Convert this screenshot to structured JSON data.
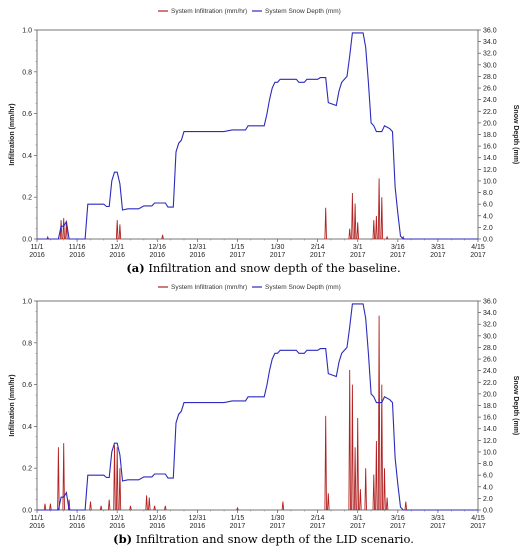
{
  "chart_data": [
    {
      "type": "line",
      "caption_tag": "(a)",
      "caption_text": " Infiltration and snow depth of the baseline.",
      "ylabel_left": "Infiltration (mm/hr)",
      "ylabel_right": "Snow Depth (mm)",
      "ylim_left": [
        0,
        1.0
      ],
      "ylim_right": [
        0,
        36
      ],
      "yticks_left": [
        "0.0",
        "0.2",
        "0.4",
        "0.6",
        "0.8",
        "1.0"
      ],
      "yticks_right": [
        "0.0",
        "2.0",
        "4.0",
        "6.0",
        "8.0",
        "10.0",
        "12.0",
        "14.0",
        "16.0",
        "18.0",
        "20.0",
        "22.0",
        "24.0",
        "26.0",
        "28.0",
        "30.0",
        "32.0",
        "34.0",
        "36.0"
      ],
      "x_ticks": [
        {
          "day": 0,
          "line1": "11/1",
          "line2": "2016"
        },
        {
          "day": 15,
          "line1": "11/16",
          "line2": "2016"
        },
        {
          "day": 30,
          "line1": "12/1",
          "line2": "2016"
        },
        {
          "day": 45,
          "line1": "12/16",
          "line2": "2016"
        },
        {
          "day": 60,
          "line1": "12/31",
          "line2": "2016"
        },
        {
          "day": 75,
          "line1": "1/15",
          "line2": "2017"
        },
        {
          "day": 90,
          "line1": "1/30",
          "line2": "2017"
        },
        {
          "day": 105,
          "line1": "2/14",
          "line2": "2017"
        },
        {
          "day": 120,
          "line1": "3/1",
          "line2": "2017"
        },
        {
          "day": 135,
          "line1": "3/16",
          "line2": "2017"
        },
        {
          "day": 150,
          "line1": "3/31",
          "line2": "2017"
        },
        {
          "day": 165,
          "line1": "4/15",
          "line2": "2017"
        }
      ],
      "xlim_days": [
        0,
        165
      ],
      "series": [
        {
          "name": "System Infiltration (mm/hr)",
          "color": "#b22222",
          "axis": "left",
          "kind": "spikes",
          "points": [
            [
              4,
              0.01
            ],
            [
              9,
              0.09
            ],
            [
              10,
              0.1
            ],
            [
              11,
              0.08
            ],
            [
              30,
              0.09
            ],
            [
              31,
              0.07
            ],
            [
              47,
              0.02
            ],
            [
              108,
              0.15
            ],
            [
              117,
              0.05
            ],
            [
              118,
              0.22
            ],
            [
              119,
              0.17
            ],
            [
              120,
              0.08
            ],
            [
              126,
              0.09
            ],
            [
              127,
              0.11
            ],
            [
              128,
              0.29
            ],
            [
              129,
              0.2
            ],
            [
              131,
              0.01
            ],
            [
              137,
              0.01
            ]
          ]
        },
        {
          "name": "System Snow Depth (mm)",
          "color": "#2b2bbd",
          "axis": "right",
          "kind": "line",
          "points": [
            [
              0,
              0
            ],
            [
              8,
              0
            ],
            [
              9,
              2.2
            ],
            [
              10,
              2.2
            ],
            [
              11,
              3.0
            ],
            [
              12,
              0
            ],
            [
              18,
              0
            ],
            [
              19,
              6.0
            ],
            [
              25,
              6.0
            ],
            [
              26,
              5.6
            ],
            [
              27,
              5.6
            ],
            [
              28,
              10.0
            ],
            [
              29,
              11.5
            ],
            [
              30,
              11.5
            ],
            [
              31,
              9.5
            ],
            [
              32,
              5.0
            ],
            [
              34,
              5.2
            ],
            [
              38,
              5.2
            ],
            [
              40,
              5.7
            ],
            [
              43,
              5.7
            ],
            [
              44,
              6.2
            ],
            [
              48,
              6.2
            ],
            [
              49,
              5.5
            ],
            [
              51,
              5.5
            ],
            [
              52,
              15.0
            ],
            [
              53,
              16.5
            ],
            [
              54,
              17.0
            ],
            [
              55,
              18.5
            ],
            [
              70,
              18.5
            ],
            [
              73,
              18.8
            ],
            [
              78,
              18.8
            ],
            [
              79,
              19.5
            ],
            [
              85,
              19.5
            ],
            [
              86,
              21.5
            ],
            [
              87,
              24.0
            ],
            [
              88,
              26.0
            ],
            [
              89,
              27.0
            ],
            [
              90,
              27.0
            ],
            [
              91,
              27.5
            ],
            [
              97,
              27.5
            ],
            [
              98,
              27.0
            ],
            [
              100,
              27.0
            ],
            [
              101,
              27.5
            ],
            [
              105,
              27.5
            ],
            [
              106,
              27.8
            ],
            [
              108,
              27.8
            ],
            [
              109,
              23.5
            ],
            [
              112,
              23.0
            ],
            [
              113,
              25.5
            ],
            [
              114,
              27.0
            ],
            [
              115,
              27.5
            ],
            [
              116,
              28.0
            ],
            [
              117,
              31.5
            ],
            [
              118,
              35.5
            ],
            [
              122,
              35.5
            ],
            [
              123,
              33.0
            ],
            [
              124,
              27.0
            ],
            [
              125,
              20.0
            ],
            [
              126,
              19.5
            ],
            [
              127,
              18.5
            ],
            [
              129,
              18.5
            ],
            [
              130,
              19.5
            ],
            [
              132,
              19.0
            ],
            [
              133,
              18.5
            ],
            [
              134,
              9.0
            ],
            [
              135,
              4.5
            ],
            [
              136,
              0.5
            ],
            [
              137,
              0
            ],
            [
              165,
              0
            ]
          ]
        }
      ]
    },
    {
      "type": "line",
      "caption_tag": "(b)",
      "caption_text": " Infiltration and snow depth of the LID scenario.",
      "ylabel_left": "Infiltration (mm/hr)",
      "ylabel_right": "Snow Depth (mm)",
      "ylim_left": [
        0,
        1.0
      ],
      "ylim_right": [
        0,
        36
      ],
      "yticks_left": [
        "0.0",
        "0.2",
        "0.4",
        "0.6",
        "0.8",
        "1.0"
      ],
      "yticks_right": [
        "0.0",
        "2.0",
        "4.0",
        "6.0",
        "8.0",
        "10.0",
        "12.0",
        "14.0",
        "16.0",
        "18.0",
        "20.0",
        "22.0",
        "24.0",
        "26.0",
        "28.0",
        "30.0",
        "32.0",
        "34.0",
        "36.0"
      ],
      "x_ticks": [
        {
          "day": 0,
          "line1": "11/1",
          "line2": "2016"
        },
        {
          "day": 15,
          "line1": "11/16",
          "line2": "2016"
        },
        {
          "day": 30,
          "line1": "12/1",
          "line2": "2016"
        },
        {
          "day": 45,
          "line1": "12/16",
          "line2": "2016"
        },
        {
          "day": 60,
          "line1": "12/31",
          "line2": "2016"
        },
        {
          "day": 75,
          "line1": "1/15",
          "line2": "2017"
        },
        {
          "day": 90,
          "line1": "1/30",
          "line2": "2017"
        },
        {
          "day": 105,
          "line1": "2/14",
          "line2": "2017"
        },
        {
          "day": 120,
          "line1": "3/1",
          "line2": "2017"
        },
        {
          "day": 135,
          "line1": "3/16",
          "line2": "2017"
        },
        {
          "day": 150,
          "line1": "3/31",
          "line2": "2017"
        },
        {
          "day": 165,
          "line1": "4/15",
          "line2": "2017"
        }
      ],
      "xlim_days": [
        0,
        165
      ],
      "series": [
        {
          "name": "System Infiltration (mm/hr)",
          "color": "#b22222",
          "axis": "left",
          "kind": "spikes",
          "points": [
            [
              3,
              0.03
            ],
            [
              5,
              0.03
            ],
            [
              8,
              0.3
            ],
            [
              10,
              0.32
            ],
            [
              12,
              0.05
            ],
            [
              20,
              0.04
            ],
            [
              24,
              0.02
            ],
            [
              27,
              0.05
            ],
            [
              29,
              0.31
            ],
            [
              30,
              0.3
            ],
            [
              31,
              0.2
            ],
            [
              35,
              0.02
            ],
            [
              41,
              0.07
            ],
            [
              42,
              0.06
            ],
            [
              44,
              0.02
            ],
            [
              48,
              0.02
            ],
            [
              75,
              0.01
            ],
            [
              92,
              0.04
            ],
            [
              108,
              0.45
            ],
            [
              109,
              0.08
            ],
            [
              117,
              0.67
            ],
            [
              118,
              0.6
            ],
            [
              119,
              0.3
            ],
            [
              120,
              0.44
            ],
            [
              121,
              0.1
            ],
            [
              123,
              0.2
            ],
            [
              126,
              0.17
            ],
            [
              127,
              0.33
            ],
            [
              128,
              0.93
            ],
            [
              129,
              0.6
            ],
            [
              130,
              0.2
            ],
            [
              131,
              0.06
            ],
            [
              138,
              0.04
            ]
          ]
        },
        {
          "name": "System Snow Depth (mm)",
          "color": "#2b2bbd",
          "axis": "right",
          "kind": "line",
          "points": [
            [
              0,
              0
            ],
            [
              8,
              0
            ],
            [
              9,
              2.2
            ],
            [
              10,
              2.2
            ],
            [
              11,
              3.0
            ],
            [
              12,
              0
            ],
            [
              18,
              0
            ],
            [
              19,
              6.0
            ],
            [
              25,
              6.0
            ],
            [
              26,
              5.6
            ],
            [
              27,
              5.6
            ],
            [
              28,
              10.0
            ],
            [
              29,
              11.5
            ],
            [
              30,
              11.5
            ],
            [
              31,
              9.5
            ],
            [
              32,
              5.0
            ],
            [
              34,
              5.2
            ],
            [
              38,
              5.2
            ],
            [
              40,
              5.7
            ],
            [
              43,
              5.7
            ],
            [
              44,
              6.2
            ],
            [
              48,
              6.2
            ],
            [
              49,
              5.5
            ],
            [
              51,
              5.5
            ],
            [
              52,
              15.0
            ],
            [
              53,
              16.5
            ],
            [
              54,
              17.0
            ],
            [
              55,
              18.5
            ],
            [
              70,
              18.5
            ],
            [
              73,
              18.8
            ],
            [
              78,
              18.8
            ],
            [
              79,
              19.5
            ],
            [
              85,
              19.5
            ],
            [
              86,
              21.5
            ],
            [
              87,
              24.0
            ],
            [
              88,
              26.0
            ],
            [
              89,
              27.0
            ],
            [
              90,
              27.0
            ],
            [
              91,
              27.5
            ],
            [
              97,
              27.5
            ],
            [
              98,
              27.0
            ],
            [
              100,
              27.0
            ],
            [
              101,
              27.5
            ],
            [
              105,
              27.5
            ],
            [
              106,
              27.8
            ],
            [
              108,
              27.8
            ],
            [
              109,
              23.5
            ],
            [
              112,
              23.0
            ],
            [
              113,
              25.5
            ],
            [
              114,
              27.0
            ],
            [
              115,
              27.5
            ],
            [
              116,
              28.0
            ],
            [
              117,
              31.5
            ],
            [
              118,
              35.5
            ],
            [
              122,
              35.5
            ],
            [
              123,
              33.0
            ],
            [
              124,
              27.0
            ],
            [
              125,
              20.0
            ],
            [
              126,
              19.5
            ],
            [
              127,
              18.5
            ],
            [
              129,
              18.5
            ],
            [
              130,
              19.5
            ],
            [
              132,
              19.0
            ],
            [
              133,
              18.5
            ],
            [
              134,
              9.0
            ],
            [
              135,
              4.5
            ],
            [
              136,
              0.5
            ],
            [
              137,
              0
            ],
            [
              165,
              0
            ]
          ]
        }
      ]
    }
  ]
}
